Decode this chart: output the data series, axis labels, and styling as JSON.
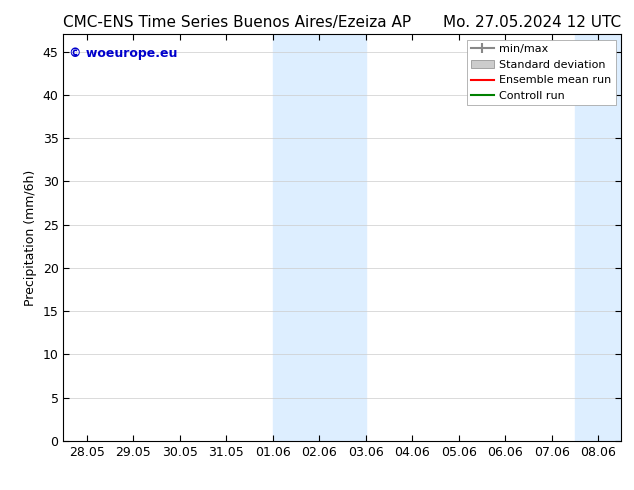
{
  "title_left": "CMC-ENS Time Series Buenos Aires/Ezeiza AP",
  "title_right": "Mo. 27.05.2024 12 UTC",
  "ylabel": "Precipitation (mm/6h)",
  "copyright": "© woeurope.eu",
  "ylim": [
    0,
    47
  ],
  "yticks": [
    0,
    5,
    10,
    15,
    20,
    25,
    30,
    35,
    40,
    45
  ],
  "xtick_labels": [
    "28.05",
    "29.05",
    "30.05",
    "31.05",
    "01.06",
    "02.06",
    "03.06",
    "04.06",
    "05.06",
    "06.06",
    "07.06",
    "08.06"
  ],
  "shaded_regions": [
    {
      "x_start": 4.0,
      "x_end": 5.0,
      "color": "#ddeeff"
    },
    {
      "x_start": 5.0,
      "x_end": 6.0,
      "color": "#ddeeff"
    },
    {
      "x_start": 10.0,
      "x_end": 11.5,
      "color": "#ddeeff"
    }
  ],
  "legend_items": [
    {
      "label": "min/max",
      "color": "#aaaaaa",
      "type": "errorbar"
    },
    {
      "label": "Standard deviation",
      "color": "#cccccc",
      "type": "box"
    },
    {
      "label": "Ensemble mean run",
      "color": "#ff0000",
      "type": "line"
    },
    {
      "label": "Controll run",
      "color": "#008000",
      "type": "line"
    }
  ],
  "background_color": "#ffffff",
  "plot_bg_color": "#ffffff",
  "title_fontsize": 11,
  "axis_fontsize": 9,
  "copyright_color": "#0000cc",
  "grid_color": "#cccccc",
  "xlim_start": -0.5,
  "xlim_end": 11.5
}
